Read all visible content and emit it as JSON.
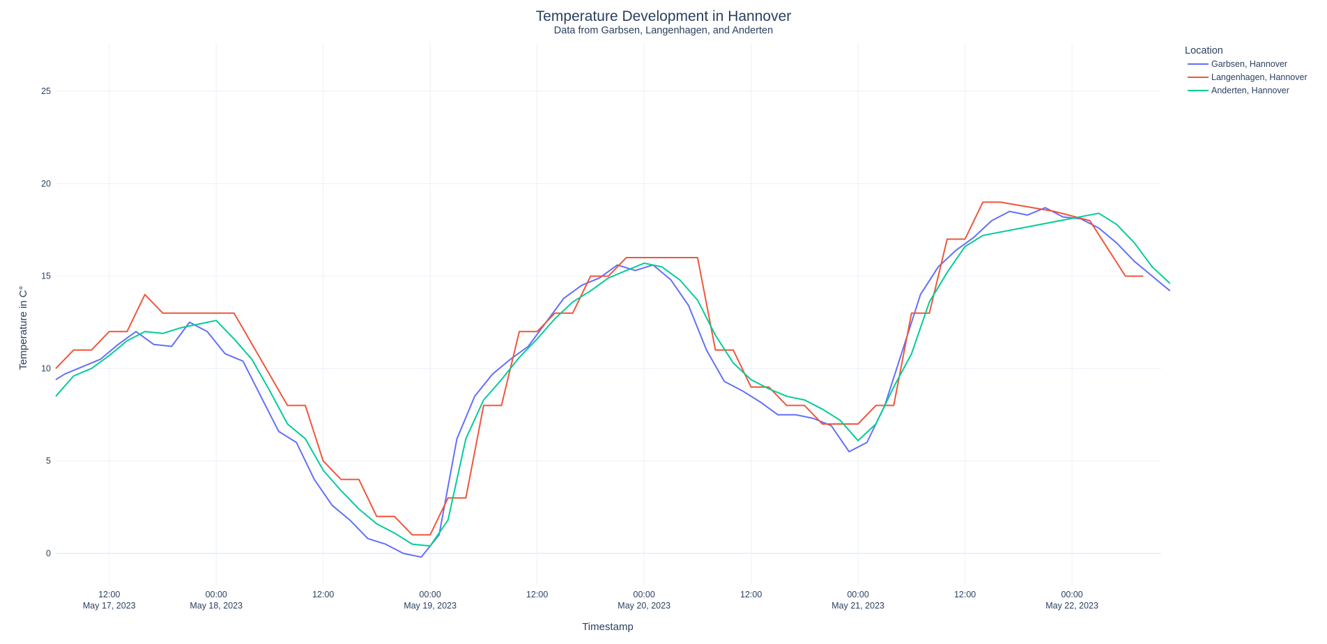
{
  "chart_data": {
    "type": "line",
    "title": "Temperature Development in Hannover",
    "subtitle": "Data from Garbsen, Langenhagen, and Anderten",
    "xlabel": "Timestamp",
    "ylabel": "Temperature in C°",
    "ylim": [
      -1.7,
      27.6
    ],
    "xlim": [
      "2023-05-17T06:00",
      "2023-05-22T10:00"
    ],
    "y_ticks": [
      0,
      5,
      10,
      15,
      20,
      25
    ],
    "x_ticks": [
      {
        "at": "2023-05-17T12:00",
        "time": "12:00",
        "date": "May 17, 2023"
      },
      {
        "at": "2023-05-18T00:00",
        "time": "00:00",
        "date": "May 18, 2023"
      },
      {
        "at": "2023-05-18T12:00",
        "time": "12:00",
        "date": ""
      },
      {
        "at": "2023-05-19T00:00",
        "time": "00:00",
        "date": "May 19, 2023"
      },
      {
        "at": "2023-05-19T12:00",
        "time": "12:00",
        "date": ""
      },
      {
        "at": "2023-05-20T00:00",
        "time": "00:00",
        "date": "May 20, 2023"
      },
      {
        "at": "2023-05-20T12:00",
        "time": "12:00",
        "date": ""
      },
      {
        "at": "2023-05-21T00:00",
        "time": "00:00",
        "date": "May 21, 2023"
      },
      {
        "at": "2023-05-21T12:00",
        "time": "12:00",
        "date": ""
      },
      {
        "at": "2023-05-22T00:00",
        "time": "00:00",
        "date": "May 22, 2023"
      }
    ],
    "grid": true,
    "legend": {
      "title": "Location",
      "placement": "top-right outside"
    },
    "series": [
      {
        "name": "Garbsen, Hannover",
        "color": "#636efa",
        "points": [
          [
            "2023-05-17T06:00",
            9.4
          ],
          [
            "2023-05-17T07:00",
            9.7
          ],
          [
            "2023-05-17T09:00",
            10.1
          ],
          [
            "2023-05-17T11:00",
            10.5
          ],
          [
            "2023-05-17T13:00",
            11.3
          ],
          [
            "2023-05-17T15:00",
            12
          ],
          [
            "2023-05-17T17:00",
            11.3
          ],
          [
            "2023-05-17T19:00",
            11.2
          ],
          [
            "2023-05-17T21:00",
            12.5
          ],
          [
            "2023-05-17T23:00",
            12
          ],
          [
            "2023-05-18T01:00",
            10.8
          ],
          [
            "2023-05-18T03:00",
            10.4
          ],
          [
            "2023-05-18T05:00",
            8.5
          ],
          [
            "2023-05-18T07:00",
            6.6
          ],
          [
            "2023-05-18T09:00",
            6
          ],
          [
            "2023-05-18T11:00",
            4
          ],
          [
            "2023-05-18T13:00",
            2.6
          ],
          [
            "2023-05-18T15:00",
            1.8
          ],
          [
            "2023-05-18T17:00",
            0.8
          ],
          [
            "2023-05-18T19:00",
            0.5
          ],
          [
            "2023-05-18T21:00",
            0
          ],
          [
            "2023-05-18T23:00",
            -0.2
          ],
          [
            "2023-05-19T01:00",
            1
          ],
          [
            "2023-05-19T03:00",
            6.2
          ],
          [
            "2023-05-19T05:00",
            8.5
          ],
          [
            "2023-05-19T07:00",
            9.7
          ],
          [
            "2023-05-19T09:00",
            10.5
          ],
          [
            "2023-05-19T11:00",
            11.2
          ],
          [
            "2023-05-19T13:00",
            12.5
          ],
          [
            "2023-05-19T15:00",
            13.8
          ],
          [
            "2023-05-19T17:00",
            14.5
          ],
          [
            "2023-05-19T19:00",
            14.9
          ],
          [
            "2023-05-19T21:00",
            15.6
          ],
          [
            "2023-05-19T23:00",
            15.3
          ],
          [
            "2023-05-20T01:00",
            15.6
          ],
          [
            "2023-05-20T03:00",
            14.8
          ],
          [
            "2023-05-20T05:00",
            13.4
          ],
          [
            "2023-05-20T07:00",
            11
          ],
          [
            "2023-05-20T09:00",
            9.3
          ],
          [
            "2023-05-20T11:00",
            8.8
          ],
          [
            "2023-05-20T13:00",
            8.2
          ],
          [
            "2023-05-20T15:00",
            7.5
          ],
          [
            "2023-05-20T17:00",
            7.5
          ],
          [
            "2023-05-20T19:00",
            7.3
          ],
          [
            "2023-05-20T21:00",
            6.9
          ],
          [
            "2023-05-20T23:00",
            5.5
          ],
          [
            "2023-05-21T01:00",
            6
          ],
          [
            "2023-05-21T03:00",
            8
          ],
          [
            "2023-05-21T05:00",
            11
          ],
          [
            "2023-05-21T07:00",
            14
          ],
          [
            "2023-05-21T09:00",
            15.5
          ],
          [
            "2023-05-21T11:00",
            16.4
          ],
          [
            "2023-05-21T13:00",
            17.1
          ],
          [
            "2023-05-21T15:00",
            18
          ],
          [
            "2023-05-21T17:00",
            18.5
          ],
          [
            "2023-05-21T19:00",
            18.3
          ],
          [
            "2023-05-21T21:00",
            18.7
          ],
          [
            "2023-05-21T23:00",
            18.2
          ],
          [
            "2023-05-22T01:00",
            18.1
          ],
          [
            "2023-05-22T03:00",
            17.6
          ],
          [
            "2023-05-22T05:00",
            16.8
          ],
          [
            "2023-05-22T07:00",
            15.8
          ],
          [
            "2023-05-22T09:00",
            15
          ],
          [
            "2023-05-22T11:00",
            14.2
          ]
        ]
      },
      {
        "name": "Langenhagen, Hannover",
        "color": "#ef553b",
        "points": [
          [
            "2023-05-17T06:00",
            10
          ],
          [
            "2023-05-17T08:00",
            11
          ],
          [
            "2023-05-17T10:00",
            11
          ],
          [
            "2023-05-17T12:00",
            12
          ],
          [
            "2023-05-17T14:00",
            12
          ],
          [
            "2023-05-17T16:00",
            14
          ],
          [
            "2023-05-17T18:00",
            13
          ],
          [
            "2023-05-18T02:00",
            13
          ],
          [
            "2023-05-18T08:00",
            8
          ],
          [
            "2023-05-18T10:00",
            8
          ],
          [
            "2023-05-18T12:00",
            5
          ],
          [
            "2023-05-18T14:00",
            4
          ],
          [
            "2023-05-18T16:00",
            4
          ],
          [
            "2023-05-18T18:00",
            2
          ],
          [
            "2023-05-18T20:00",
            2
          ],
          [
            "2023-05-18T22:00",
            1
          ],
          [
            "2023-05-19T00:00",
            1
          ],
          [
            "2023-05-19T02:00",
            3
          ],
          [
            "2023-05-19T04:00",
            3
          ],
          [
            "2023-05-19T06:00",
            8
          ],
          [
            "2023-05-19T08:00",
            8
          ],
          [
            "2023-05-19T10:00",
            12
          ],
          [
            "2023-05-19T12:00",
            12
          ],
          [
            "2023-05-19T14:00",
            13
          ],
          [
            "2023-05-19T16:00",
            13
          ],
          [
            "2023-05-19T18:00",
            15
          ],
          [
            "2023-05-19T20:00",
            15
          ],
          [
            "2023-05-19T22:00",
            16
          ],
          [
            "2023-05-20T06:00",
            16
          ],
          [
            "2023-05-20T08:00",
            11
          ],
          [
            "2023-05-20T10:00",
            11
          ],
          [
            "2023-05-20T12:00",
            9
          ],
          [
            "2023-05-20T14:00",
            9
          ],
          [
            "2023-05-20T16:00",
            8
          ],
          [
            "2023-05-20T18:00",
            8
          ],
          [
            "2023-05-20T20:00",
            7
          ],
          [
            "2023-05-20T22:00",
            7
          ],
          [
            "2023-05-21T00:00",
            7
          ],
          [
            "2023-05-21T02:00",
            8
          ],
          [
            "2023-05-21T04:00",
            8
          ],
          [
            "2023-05-21T06:00",
            13
          ],
          [
            "2023-05-21T08:00",
            13
          ],
          [
            "2023-05-21T10:00",
            17
          ],
          [
            "2023-05-21T12:00",
            17
          ],
          [
            "2023-05-21T14:00",
            19
          ],
          [
            "2023-05-21T16:00",
            19
          ],
          [
            "2023-05-21T22:00",
            18.5
          ],
          [
            "2023-05-22T02:00",
            18
          ],
          [
            "2023-05-22T06:00",
            15
          ],
          [
            "2023-05-22T08:00",
            15
          ]
        ]
      },
      {
        "name": "Anderten, Hannover",
        "color": "#00cc96",
        "points": [
          [
            "2023-05-17T06:00",
            8.5
          ],
          [
            "2023-05-17T08:00",
            9.6
          ],
          [
            "2023-05-17T10:00",
            10
          ],
          [
            "2023-05-17T12:00",
            10.7
          ],
          [
            "2023-05-17T14:00",
            11.5
          ],
          [
            "2023-05-17T16:00",
            12
          ],
          [
            "2023-05-17T18:00",
            11.9
          ],
          [
            "2023-05-17T20:00",
            12.2
          ],
          [
            "2023-05-17T22:00",
            12.4
          ],
          [
            "2023-05-18T00:00",
            12.6
          ],
          [
            "2023-05-18T02:00",
            11.6
          ],
          [
            "2023-05-18T04:00",
            10.5
          ],
          [
            "2023-05-18T06:00",
            8.8
          ],
          [
            "2023-05-18T08:00",
            7
          ],
          [
            "2023-05-18T10:00",
            6.2
          ],
          [
            "2023-05-18T12:00",
            4.5
          ],
          [
            "2023-05-18T14:00",
            3.4
          ],
          [
            "2023-05-18T16:00",
            2.4
          ],
          [
            "2023-05-18T18:00",
            1.6
          ],
          [
            "2023-05-18T20:00",
            1.1
          ],
          [
            "2023-05-18T22:00",
            0.5
          ],
          [
            "2023-05-19T00:00",
            0.4
          ],
          [
            "2023-05-19T02:00",
            1.8
          ],
          [
            "2023-05-19T04:00",
            6.2
          ],
          [
            "2023-05-19T06:00",
            8.3
          ],
          [
            "2023-05-19T08:00",
            9.4
          ],
          [
            "2023-05-19T10:00",
            10.6
          ],
          [
            "2023-05-19T12:00",
            11.6
          ],
          [
            "2023-05-19T14:00",
            12.7
          ],
          [
            "2023-05-19T16:00",
            13.6
          ],
          [
            "2023-05-19T18:00",
            14.2
          ],
          [
            "2023-05-19T20:00",
            14.9
          ],
          [
            "2023-05-19T22:00",
            15.3
          ],
          [
            "2023-05-20T00:00",
            15.7
          ],
          [
            "2023-05-20T02:00",
            15.5
          ],
          [
            "2023-05-20T04:00",
            14.8
          ],
          [
            "2023-05-20T06:00",
            13.7
          ],
          [
            "2023-05-20T08:00",
            11.8
          ],
          [
            "2023-05-20T10:00",
            10.3
          ],
          [
            "2023-05-20T12:00",
            9.4
          ],
          [
            "2023-05-20T14:00",
            8.9
          ],
          [
            "2023-05-20T16:00",
            8.5
          ],
          [
            "2023-05-20T18:00",
            8.3
          ],
          [
            "2023-05-20T20:00",
            7.8
          ],
          [
            "2023-05-20T22:00",
            7.2
          ],
          [
            "2023-05-21T00:00",
            6.1
          ],
          [
            "2023-05-21T02:00",
            7
          ],
          [
            "2023-05-21T04:00",
            9
          ],
          [
            "2023-05-21T06:00",
            10.8
          ],
          [
            "2023-05-21T08:00",
            13.6
          ],
          [
            "2023-05-21T10:00",
            15.2
          ],
          [
            "2023-05-21T12:00",
            16.6
          ],
          [
            "2023-05-21T14:00",
            17.2
          ],
          [
            "2023-05-22T03:00",
            18.4
          ],
          [
            "2023-05-22T05:00",
            17.8
          ],
          [
            "2023-05-22T07:00",
            16.8
          ],
          [
            "2023-05-22T09:00",
            15.5
          ],
          [
            "2023-05-22T11:00",
            14.6
          ]
        ]
      }
    ]
  }
}
